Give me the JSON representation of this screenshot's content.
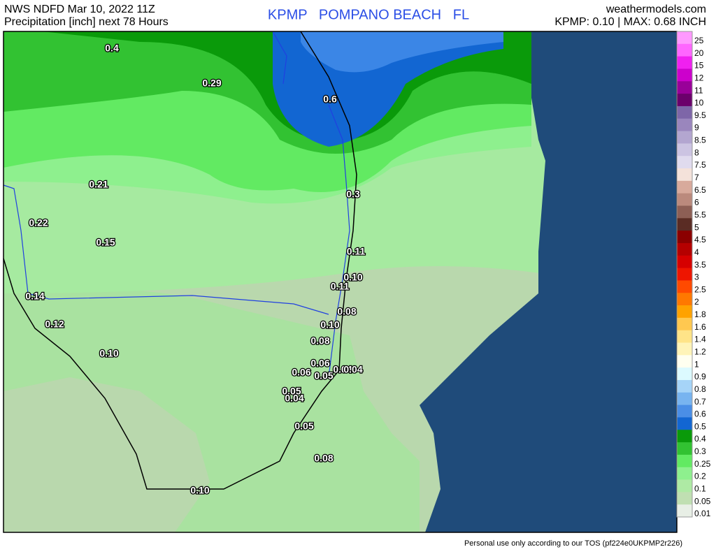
{
  "header": {
    "source": "NWS NDFD Mar 10, 2022 11Z",
    "product": "Precipitation [inch] next 78 Hours",
    "station": "KPMP   POMPANO BEACH   FL",
    "site": "weathermodels.com",
    "summary": "KPMP: 0.10 | MAX: 0.68 INCH"
  },
  "map": {
    "labels": [
      "0.4",
      "0.29",
      "0.6",
      "0.21",
      "0.3",
      "0.22",
      "0.15",
      "0.11",
      "0.10",
      "0.11",
      "0.14",
      "0.08",
      "0.12",
      "0.10",
      "0.08",
      "0.10",
      "0.06",
      "0.06",
      "0.04",
      "0.04",
      "0.05",
      "0.05",
      "0.04",
      "0.05",
      "0.08",
      "0.10"
    ]
  },
  "legend": {
    "items": [
      {
        "label": "25",
        "color": "#ff99ff"
      },
      {
        "label": "20",
        "color": "#ff66ff"
      },
      {
        "label": "15",
        "color": "#f020f0"
      },
      {
        "label": "12",
        "color": "#cc00cc"
      },
      {
        "label": "11",
        "color": "#990099"
      },
      {
        "label": "10",
        "color": "#6b006b"
      },
      {
        "label": "9.5",
        "color": "#7e66a8"
      },
      {
        "label": "9",
        "color": "#9a86bd"
      },
      {
        "label": "8.5",
        "color": "#b3a6d0"
      },
      {
        "label": "8",
        "color": "#ccc4e2"
      },
      {
        "label": "7.5",
        "color": "#e0dbee"
      },
      {
        "label": "7",
        "color": "#f4e2da"
      },
      {
        "label": "6.5",
        "color": "#d8aa9c"
      },
      {
        "label": "6",
        "color": "#bb8a7d"
      },
      {
        "label": "5.5",
        "color": "#8d5f55"
      },
      {
        "label": "5",
        "color": "#5a2c24"
      },
      {
        "label": "4.5",
        "color": "#8b0000"
      },
      {
        "label": "4",
        "color": "#b50000"
      },
      {
        "label": "3.5",
        "color": "#d60000"
      },
      {
        "label": "3",
        "color": "#ee1500"
      },
      {
        "label": "2.5",
        "color": "#ff4a00"
      },
      {
        "label": "2",
        "color": "#ff7800"
      },
      {
        "label": "1.8",
        "color": "#ffa200"
      },
      {
        "label": "1.6",
        "color": "#ffc850"
      },
      {
        "label": "1.4",
        "color": "#ffe488"
      },
      {
        "label": "1.2",
        "color": "#fff4b8"
      },
      {
        "label": "1",
        "color": "#fffff0"
      },
      {
        "label": "0.9",
        "color": "#dcfaff"
      },
      {
        "label": "0.8",
        "color": "#a6d4f8"
      },
      {
        "label": "0.7",
        "color": "#78b4f0"
      },
      {
        "label": "0.6",
        "color": "#4a8ee6"
      },
      {
        "label": "0.5",
        "color": "#1266d2"
      },
      {
        "label": "0.4",
        "color": "#0a9a0a"
      },
      {
        "label": "0.3",
        "color": "#32c232"
      },
      {
        "label": "0.25",
        "color": "#62ea62"
      },
      {
        "label": "0.2",
        "color": "#8ef08e"
      },
      {
        "label": "0.1",
        "color": "#aeeaa4"
      },
      {
        "label": "0.05",
        "color": "#c0dfb2"
      },
      {
        "label": "0.01",
        "color": "#e8efe6"
      }
    ]
  },
  "footer": {
    "note": "Personal use only according to our TOS (pf224e0UKPMP2r226)"
  }
}
